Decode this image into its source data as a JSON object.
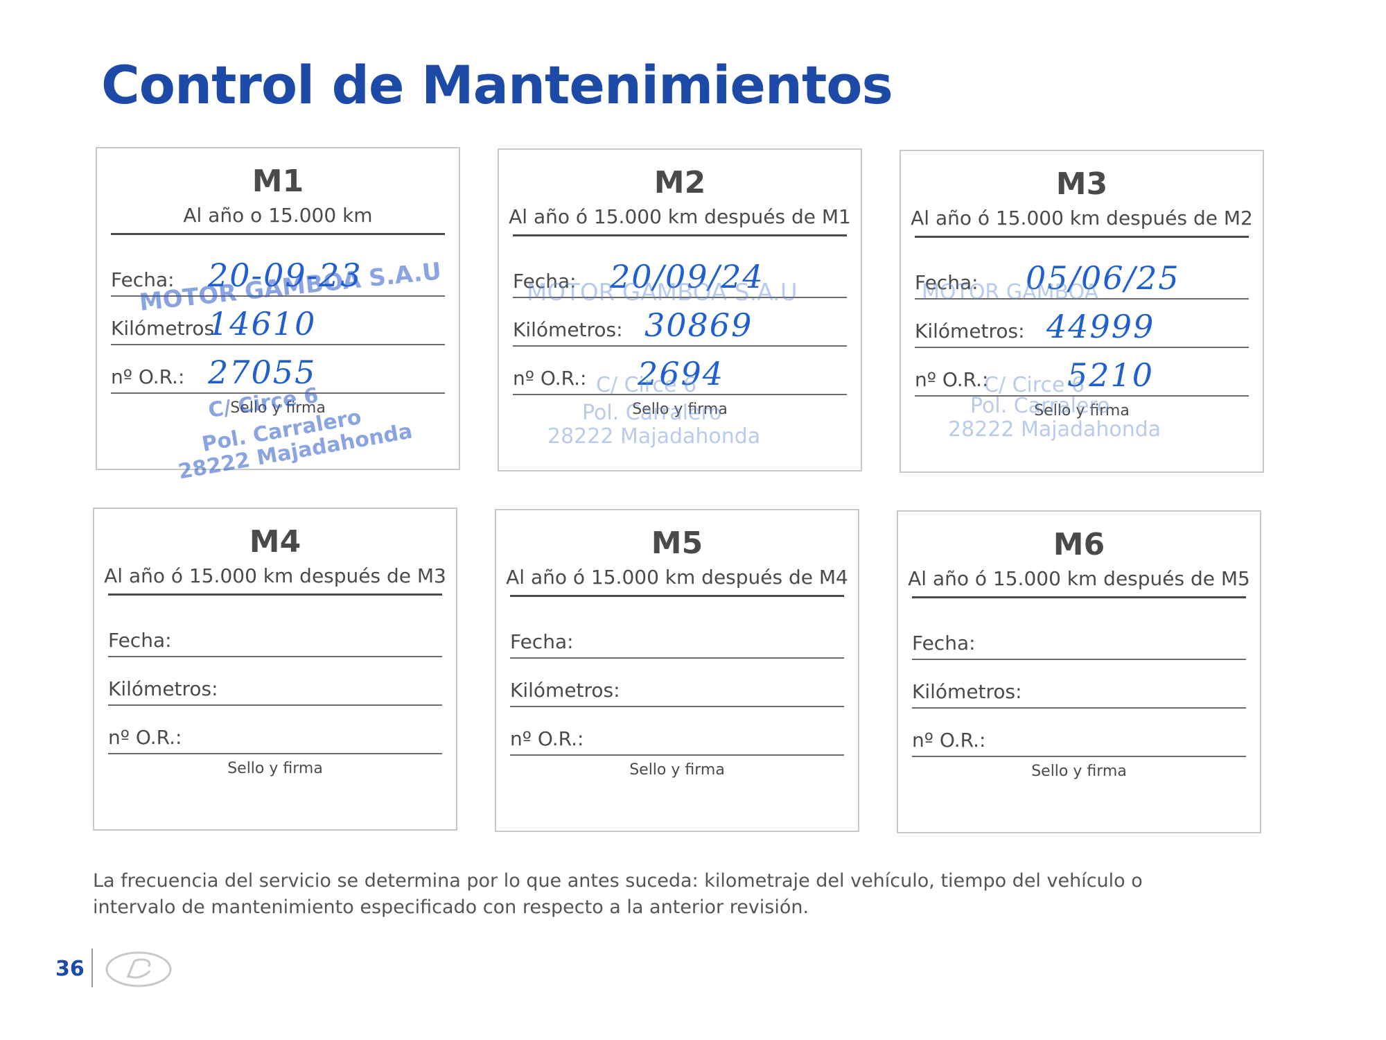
{
  "page": {
    "title": "Control de Mantenimientos",
    "footnote": "La frecuencia del servicio se determina por lo que antes suceda: kilometraje del vehículo, tiempo del vehículo o intervalo de mantenimiento especificado con respecto a la anterior revisión.",
    "page_number": "36",
    "logo_icon": "hyundai-logo-icon"
  },
  "labels": {
    "fecha": "Fecha:",
    "kilometros": "Kilómetros:",
    "or": "nº O.R.:",
    "sello": "Sello y firma"
  },
  "cards": [
    {
      "code": "M1",
      "subtitle": "Al año o 15.000 km",
      "fecha": "20-09-23",
      "kilometros": "14610",
      "or": "27055",
      "stamp": {
        "line1": "MOTOR GAMBOA S.A.U",
        "line2": "C/ Circe 6",
        "line3": "Pol. Carralero",
        "line4": "28222 Majadahonda"
      }
    },
    {
      "code": "M2",
      "subtitle": "Al año ó 15.000 km después de M1",
      "fecha": "20/09/24",
      "kilometros": "30869",
      "or": "2694",
      "stamp": {
        "line1": "MOTOR GAMBOA S.A.U",
        "line2": "C/ Circe 6",
        "line3": "Pol. Carralero",
        "line4": "28222 Majadahonda"
      }
    },
    {
      "code": "M3",
      "subtitle": "Al año ó 15.000 km después de M2",
      "fecha": "05/06/25",
      "kilometros": "44999",
      "or": "5210",
      "stamp": {
        "line1": "MOTOR GAMBOA",
        "line2": "C/ Circe 6",
        "line3": "Pol. Carralero",
        "line4": "28222 Majadahonda"
      }
    },
    {
      "code": "M4",
      "subtitle": "Al año ó 15.000 km después de M3",
      "fecha": "",
      "kilometros": "",
      "or": ""
    },
    {
      "code": "M5",
      "subtitle": "Al año ó 15.000 km después de M4",
      "fecha": "",
      "kilometros": "",
      "or": ""
    },
    {
      "code": "M6",
      "subtitle": "Al año ó 15.000 km después de M5",
      "fecha": "",
      "kilometros": "",
      "or": ""
    }
  ]
}
